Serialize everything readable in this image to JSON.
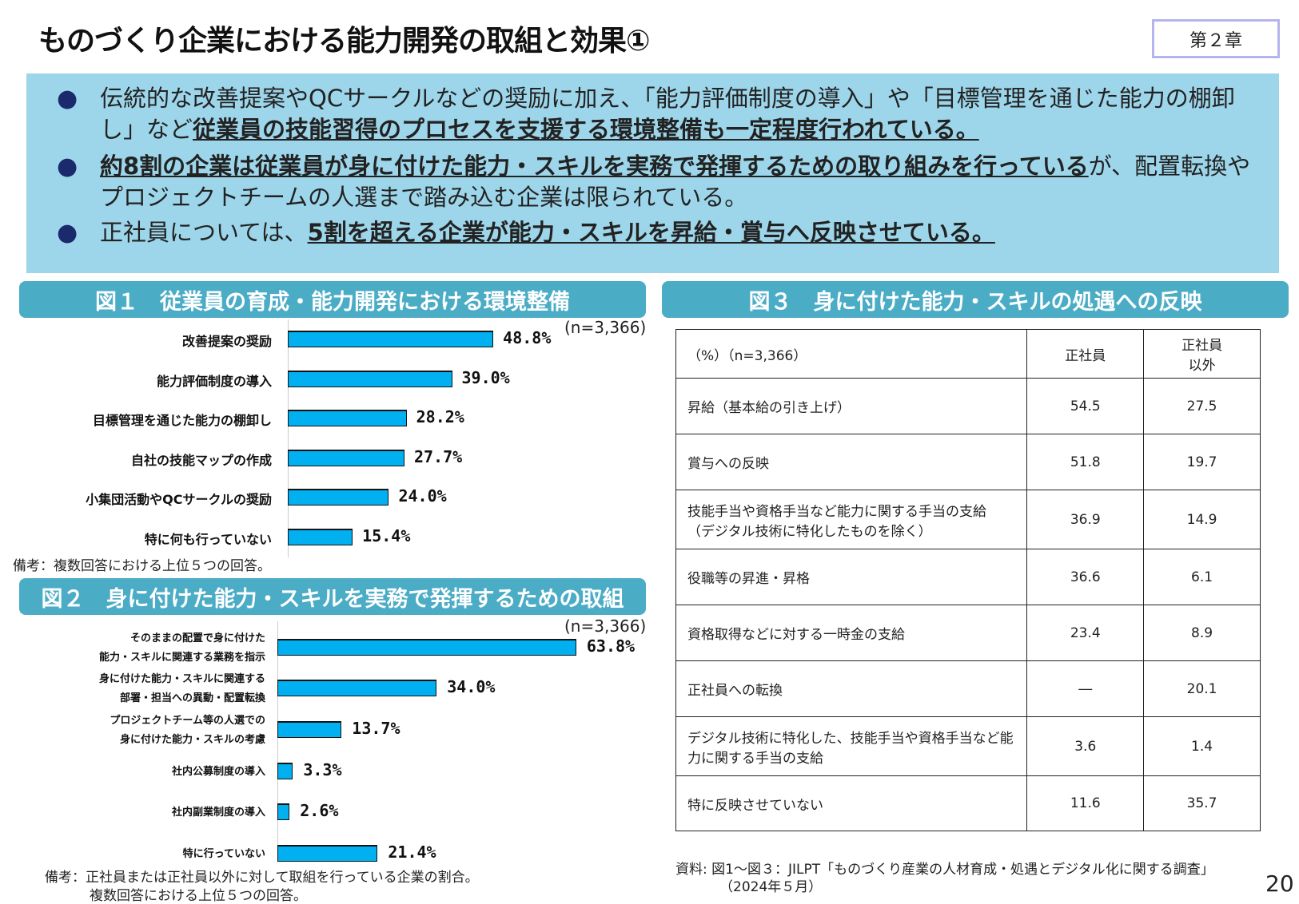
{
  "title": "ものづくり企業における能力開発の取組と効果①",
  "chapter": "第２章",
  "summary": [
    {
      "pre": "伝統的な改善提案やQCサークルなどの奨励に加え、「能力評価制度の導入」や「目標管理を通じた能力の棚卸し」など",
      "em": "従業員の技能習得のプロセスを支援する環境整備も一定程度行われている。",
      "post": ""
    },
    {
      "pre": "",
      "em": "約8割の企業は従業員が身に付けた能力・スキルを実務で発揮するための取り組みを行っている",
      "post": "が、配置転換やプロジェクトチームの人選まで踏み込む企業は限られている。"
    },
    {
      "pre": "正社員については、",
      "em": "5割を超える企業が能力・スキルを昇給・賞与へ反映させている。",
      "post": ""
    }
  ],
  "chart_data": [
    {
      "type": "bar",
      "title": "図１　従業員の育成・能力開発における環境整備",
      "n": "(n=3,366)",
      "categories": [
        "改善提案の奨励",
        "能力評価制度の導入",
        "目標管理を通じた能力の棚卸し",
        "自社の技能マップの作成",
        "小集団活動やQCサークルの奨励",
        "特に何も行っていない"
      ],
      "values": [
        48.8,
        39.0,
        28.2,
        27.7,
        24.0,
        15.4
      ],
      "labels": [
        "48.8%",
        "39.0%",
        "28.2%",
        "27.7%",
        "24.0%",
        "15.4%"
      ],
      "note": "備考：複数回答における上位５つの回答。"
    },
    {
      "type": "bar",
      "title": "図２　身に付けた能力・スキルを実務で発揮するための取組",
      "n": "(n=3,366)",
      "categories": [
        [
          "そのままの配置で身に付けた",
          "能力・スキルに関連する業務を指示"
        ],
        [
          "身に付けた能力・スキルに関連する",
          "部署・担当への異動・配置転換"
        ],
        [
          "プロジェクトチーム等の人選での",
          "身に付けた能力・スキルの考慮"
        ],
        [
          "社内公募制度の導入"
        ],
        [
          "社内副業制度の導入"
        ],
        [
          "特に行っていない"
        ]
      ],
      "values": [
        63.8,
        34.0,
        13.7,
        3.3,
        2.6,
        21.4
      ],
      "labels": [
        "63.8%",
        "34.0%",
        "13.7%",
        "3.3%",
        "2.6%",
        "21.4%"
      ],
      "note": [
        "備考：正社員または正社員以外に対して取組を行っている企業の割合。",
        "複数回答における上位５つの回答。"
      ]
    },
    {
      "type": "table",
      "title": "図３　身に付けた能力・スキルの処遇への反映",
      "header": [
        "（%）（n=3,366）",
        "正社員",
        "正社員\n以外"
      ],
      "rows": [
        [
          "昇給（基本給の引き上げ）",
          "54.5",
          "27.5"
        ],
        [
          "賞与への反映",
          "51.8",
          "19.7"
        ],
        [
          "技能手当や資格手当など能力に関する手当の支給\n（デジタル技術に特化したものを除く）",
          "36.9",
          "14.9"
        ],
        [
          "役職等の昇進・昇格",
          "36.6",
          "6.1"
        ],
        [
          "資格取得などに対する一時金の支給",
          "23.4",
          "8.9"
        ],
        [
          "正社員への転換",
          "―",
          "20.1"
        ],
        [
          "デジタル技術に特化した、技能手当や資格手当など能\n力に関する手当の支給",
          "3.6",
          "1.4"
        ],
        [
          "特に反映させていない",
          "11.6",
          "35.7"
        ]
      ]
    }
  ],
  "source": [
    "資料: 図1～図３：JILPT「ものづくり産業の人材育成・処遇とデジタル化に関する調査」",
    "（2024年５月）"
  ],
  "page_number": "20",
  "colors": {
    "bar": "#00b0f0",
    "header": "#4bacc6",
    "summary_bg": "#9dd6ea"
  }
}
